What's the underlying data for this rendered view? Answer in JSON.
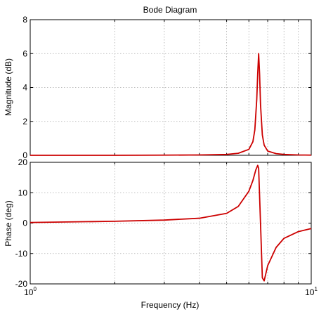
{
  "chart_data": [
    {
      "type": "line",
      "title": "Bode Diagram",
      "ylabel": "Magnitude (dB)",
      "xscale": "log",
      "xlim": [
        1,
        10
      ],
      "ylim": [
        0,
        8
      ],
      "yticks": [
        "0",
        "2",
        "4",
        "6",
        "8"
      ],
      "grid": true,
      "series": [
        {
          "color": "#cc0000",
          "x": [
            1,
            2,
            3,
            4,
            5,
            5.5,
            6.0,
            6.2,
            6.3,
            6.4,
            6.45,
            6.5,
            6.55,
            6.6,
            6.7,
            6.8,
            7.0,
            7.5,
            8,
            9,
            10
          ],
          "y": [
            0,
            0,
            0.01,
            0.02,
            0.05,
            0.12,
            0.35,
            0.8,
            1.5,
            3.3,
            4.8,
            6.0,
            4.8,
            3.0,
            1.2,
            0.6,
            0.25,
            0.1,
            0.05,
            0.02,
            0.01
          ]
        }
      ]
    },
    {
      "type": "line",
      "ylabel": "Phase (deg)",
      "xlabel": "Frequency  (Hz)",
      "xscale": "log",
      "xlim": [
        1,
        10
      ],
      "ylim": [
        -20,
        20
      ],
      "yticks": [
        "20",
        "10",
        "0",
        "-10",
        "-20"
      ],
      "xticks": [
        {
          "value": 1,
          "base": "10",
          "exp": "0"
        },
        {
          "value": 10,
          "base": "10",
          "exp": "1"
        }
      ],
      "grid": true,
      "series": [
        {
          "color": "#cc0000",
          "x": [
            1,
            2,
            3,
            4,
            5,
            5.5,
            6.0,
            6.2,
            6.35,
            6.45,
            6.5,
            6.6,
            6.7,
            6.8,
            7.0,
            7.5,
            8,
            9,
            10
          ],
          "y": [
            0.2,
            0.6,
            1.0,
            1.6,
            3.2,
            5.5,
            10.5,
            14.0,
            17.5,
            19.0,
            18.0,
            0.0,
            -18.0,
            -19.0,
            -14.0,
            -8.0,
            -5.0,
            -2.8,
            -1.8
          ]
        }
      ]
    }
  ]
}
